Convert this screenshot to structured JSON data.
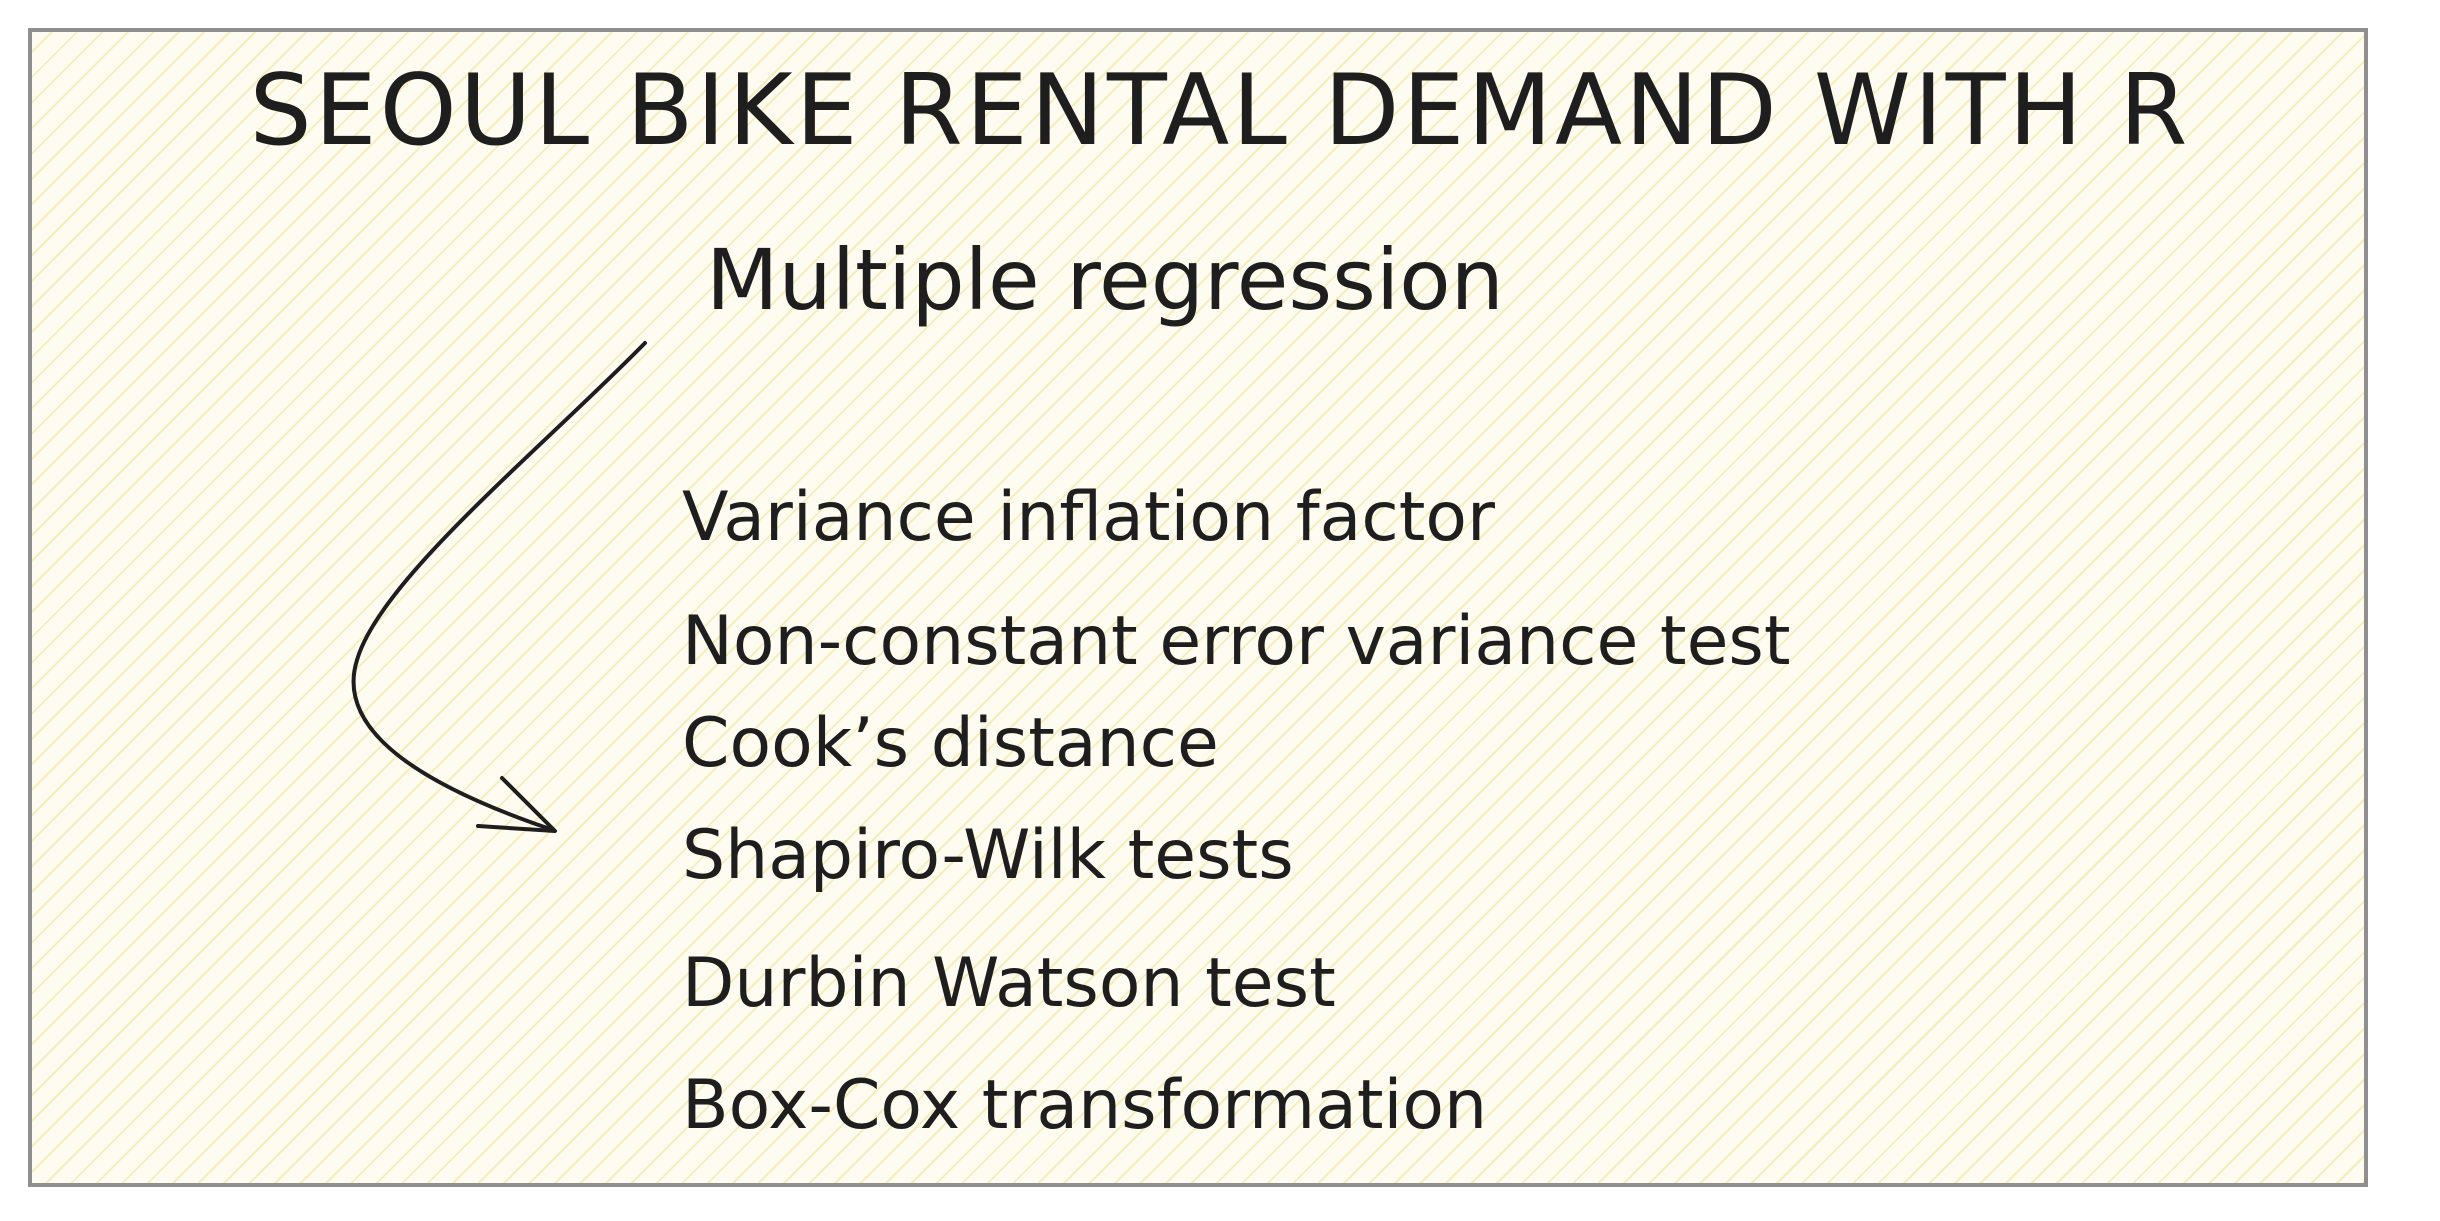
{
  "diagram": {
    "title": "SEOUL BIKE RENTAL DEMAND WITH R",
    "subtitle": "Multiple regression",
    "items": [
      "Variance inflation factor",
      "Non-constant error variance test",
      "Cook’s distance",
      "Shapiro-Wilk tests",
      "Durbin Watson test",
      "Box-Cox transformation"
    ]
  },
  "colors": {
    "ink": "#1e1e1e",
    "background": "#fefcf0",
    "hatch": "#f2e8aa",
    "border": "#8f8f8f"
  }
}
